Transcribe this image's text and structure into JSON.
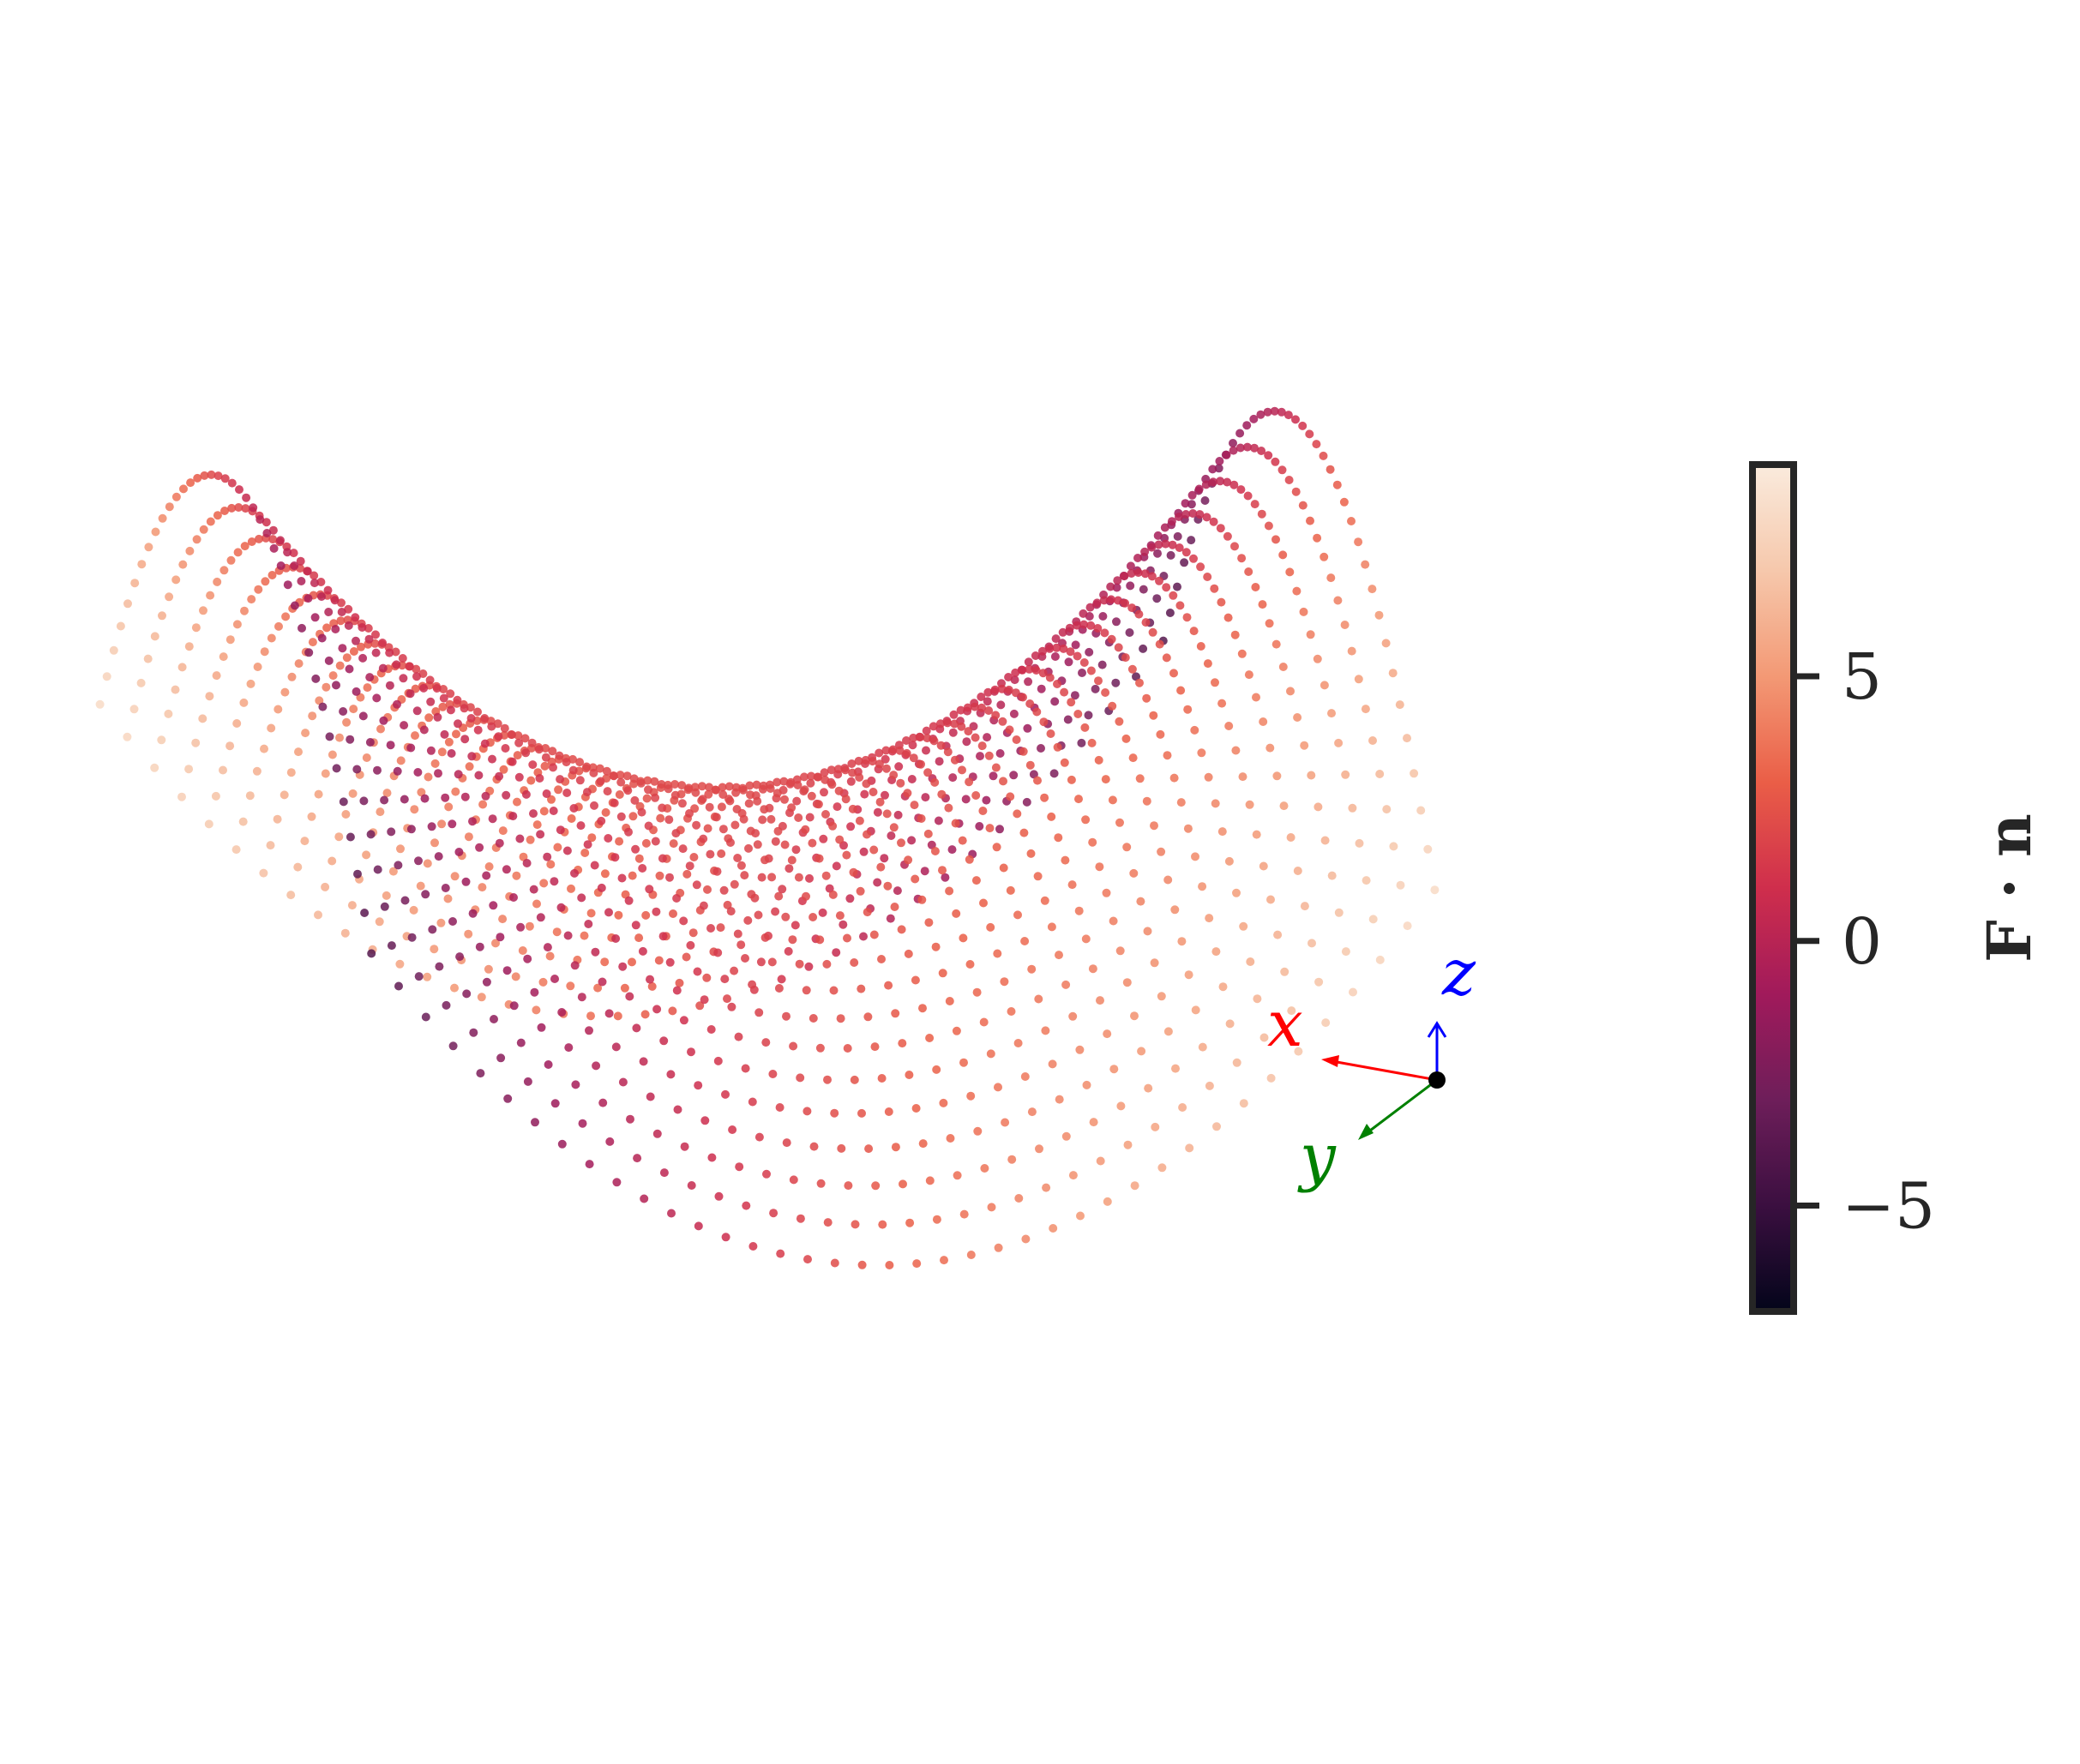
{
  "chart_data": {
    "type": "scatter",
    "subtype": "3d-surface-point-cloud",
    "title": "",
    "description_of_data": "Points sampled on a saddle-like surface z = f(x, y); each point colored by its flux value F·n",
    "surface": {
      "x_range": [
        -1,
        1
      ],
      "y_range": [
        -1,
        1
      ],
      "grid_samples": 40,
      "height_function": "z = x^2 - y^2 (saddle)"
    },
    "colorbar": {
      "label": "F · n",
      "range": [
        -7,
        9
      ],
      "ticks": [
        5,
        0,
        -5
      ],
      "tick_labels": [
        "5",
        "0",
        "−5"
      ],
      "colormap": "rocket",
      "colormap_stops": [
        "#03051a",
        "#3b0f40",
        "#6e1e5a",
        "#a11a5b",
        "#cf2e4c",
        "#ea5e47",
        "#f39975",
        "#f6c8ac",
        "#faebdd"
      ]
    },
    "orientation_triad": {
      "x_label": "x",
      "y_label": "y",
      "z_label": "z",
      "x_color": "#ff0000",
      "y_color": "#008000",
      "z_color": "#0000ff"
    }
  }
}
